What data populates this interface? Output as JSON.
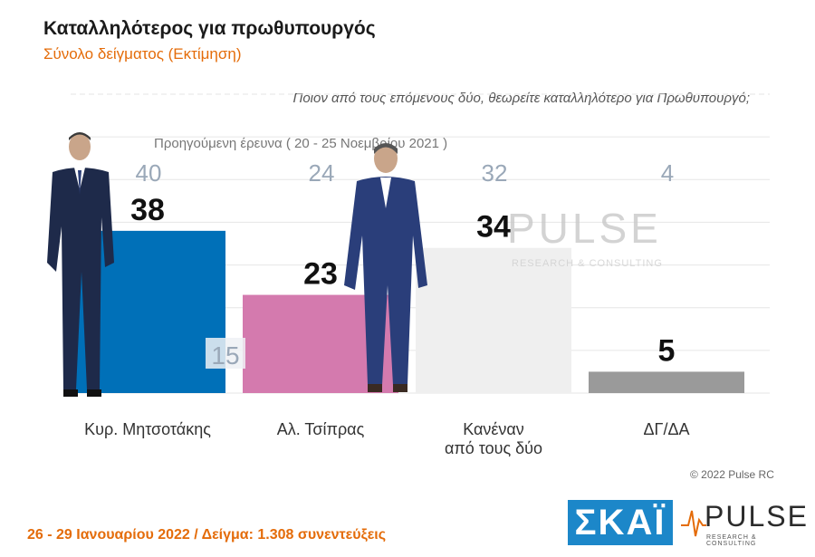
{
  "header": {
    "title": "Καταλληλότερος για πρωθυπουργός",
    "subtitle": "Σύνολο δείγματος   (Εκτίμηση)",
    "question": "Ποιον από τους επόμενους δύο, θεωρείτε καταλληλότερο για Πρωθυπουργό;",
    "previous_survey_label": "Προηγούμενη έρευνα  ( 20 - 25 Νοεμβρίου  2021 )"
  },
  "watermark": {
    "brand": "PULSE",
    "tagline": "RESEARCH & CONSULTING"
  },
  "footer": {
    "date_sample": "26 - 29  Ιανουαρίου  2022  /  Δείγμα:  1.308 συνεντεύξεις",
    "copyright": "© 2022 Pulse RC",
    "logo_skai": "ΣΚΑΪ",
    "logo_pulse": "PULSE",
    "logo_pulse_sub": "RESEARCH & CONSULTING"
  },
  "chart_data": {
    "type": "bar",
    "title": "Καταλληλότερος για πρωθυπουργός",
    "subtitle": "Σύνολο δείγματος   (Εκτίμηση)",
    "categories": [
      "Κυρ. Μητσοτάκης",
      "Αλ. Τσίπρας",
      "Κανέναν\nαπό τους δύο",
      "ΔΓ/ΔΑ"
    ],
    "series": [
      {
        "name": "",
        "values": [
          38,
          23,
          34,
          5
        ],
        "colors": [
          "#0070b8",
          "#d47aae",
          "#efefef",
          "#9a9a9a"
        ]
      }
    ],
    "previous_values": [
      40,
      24,
      32,
      4
    ],
    "previous_label": "Προηγούμενη έρευνα  ( 20 - 25 Νοεμβρίου  2021 )",
    "extra_labels": [
      {
        "category": "Αλ. Τσίπρας",
        "value": 15
      }
    ],
    "ylim": [
      0,
      70
    ],
    "grid": true,
    "legend": "none"
  }
}
